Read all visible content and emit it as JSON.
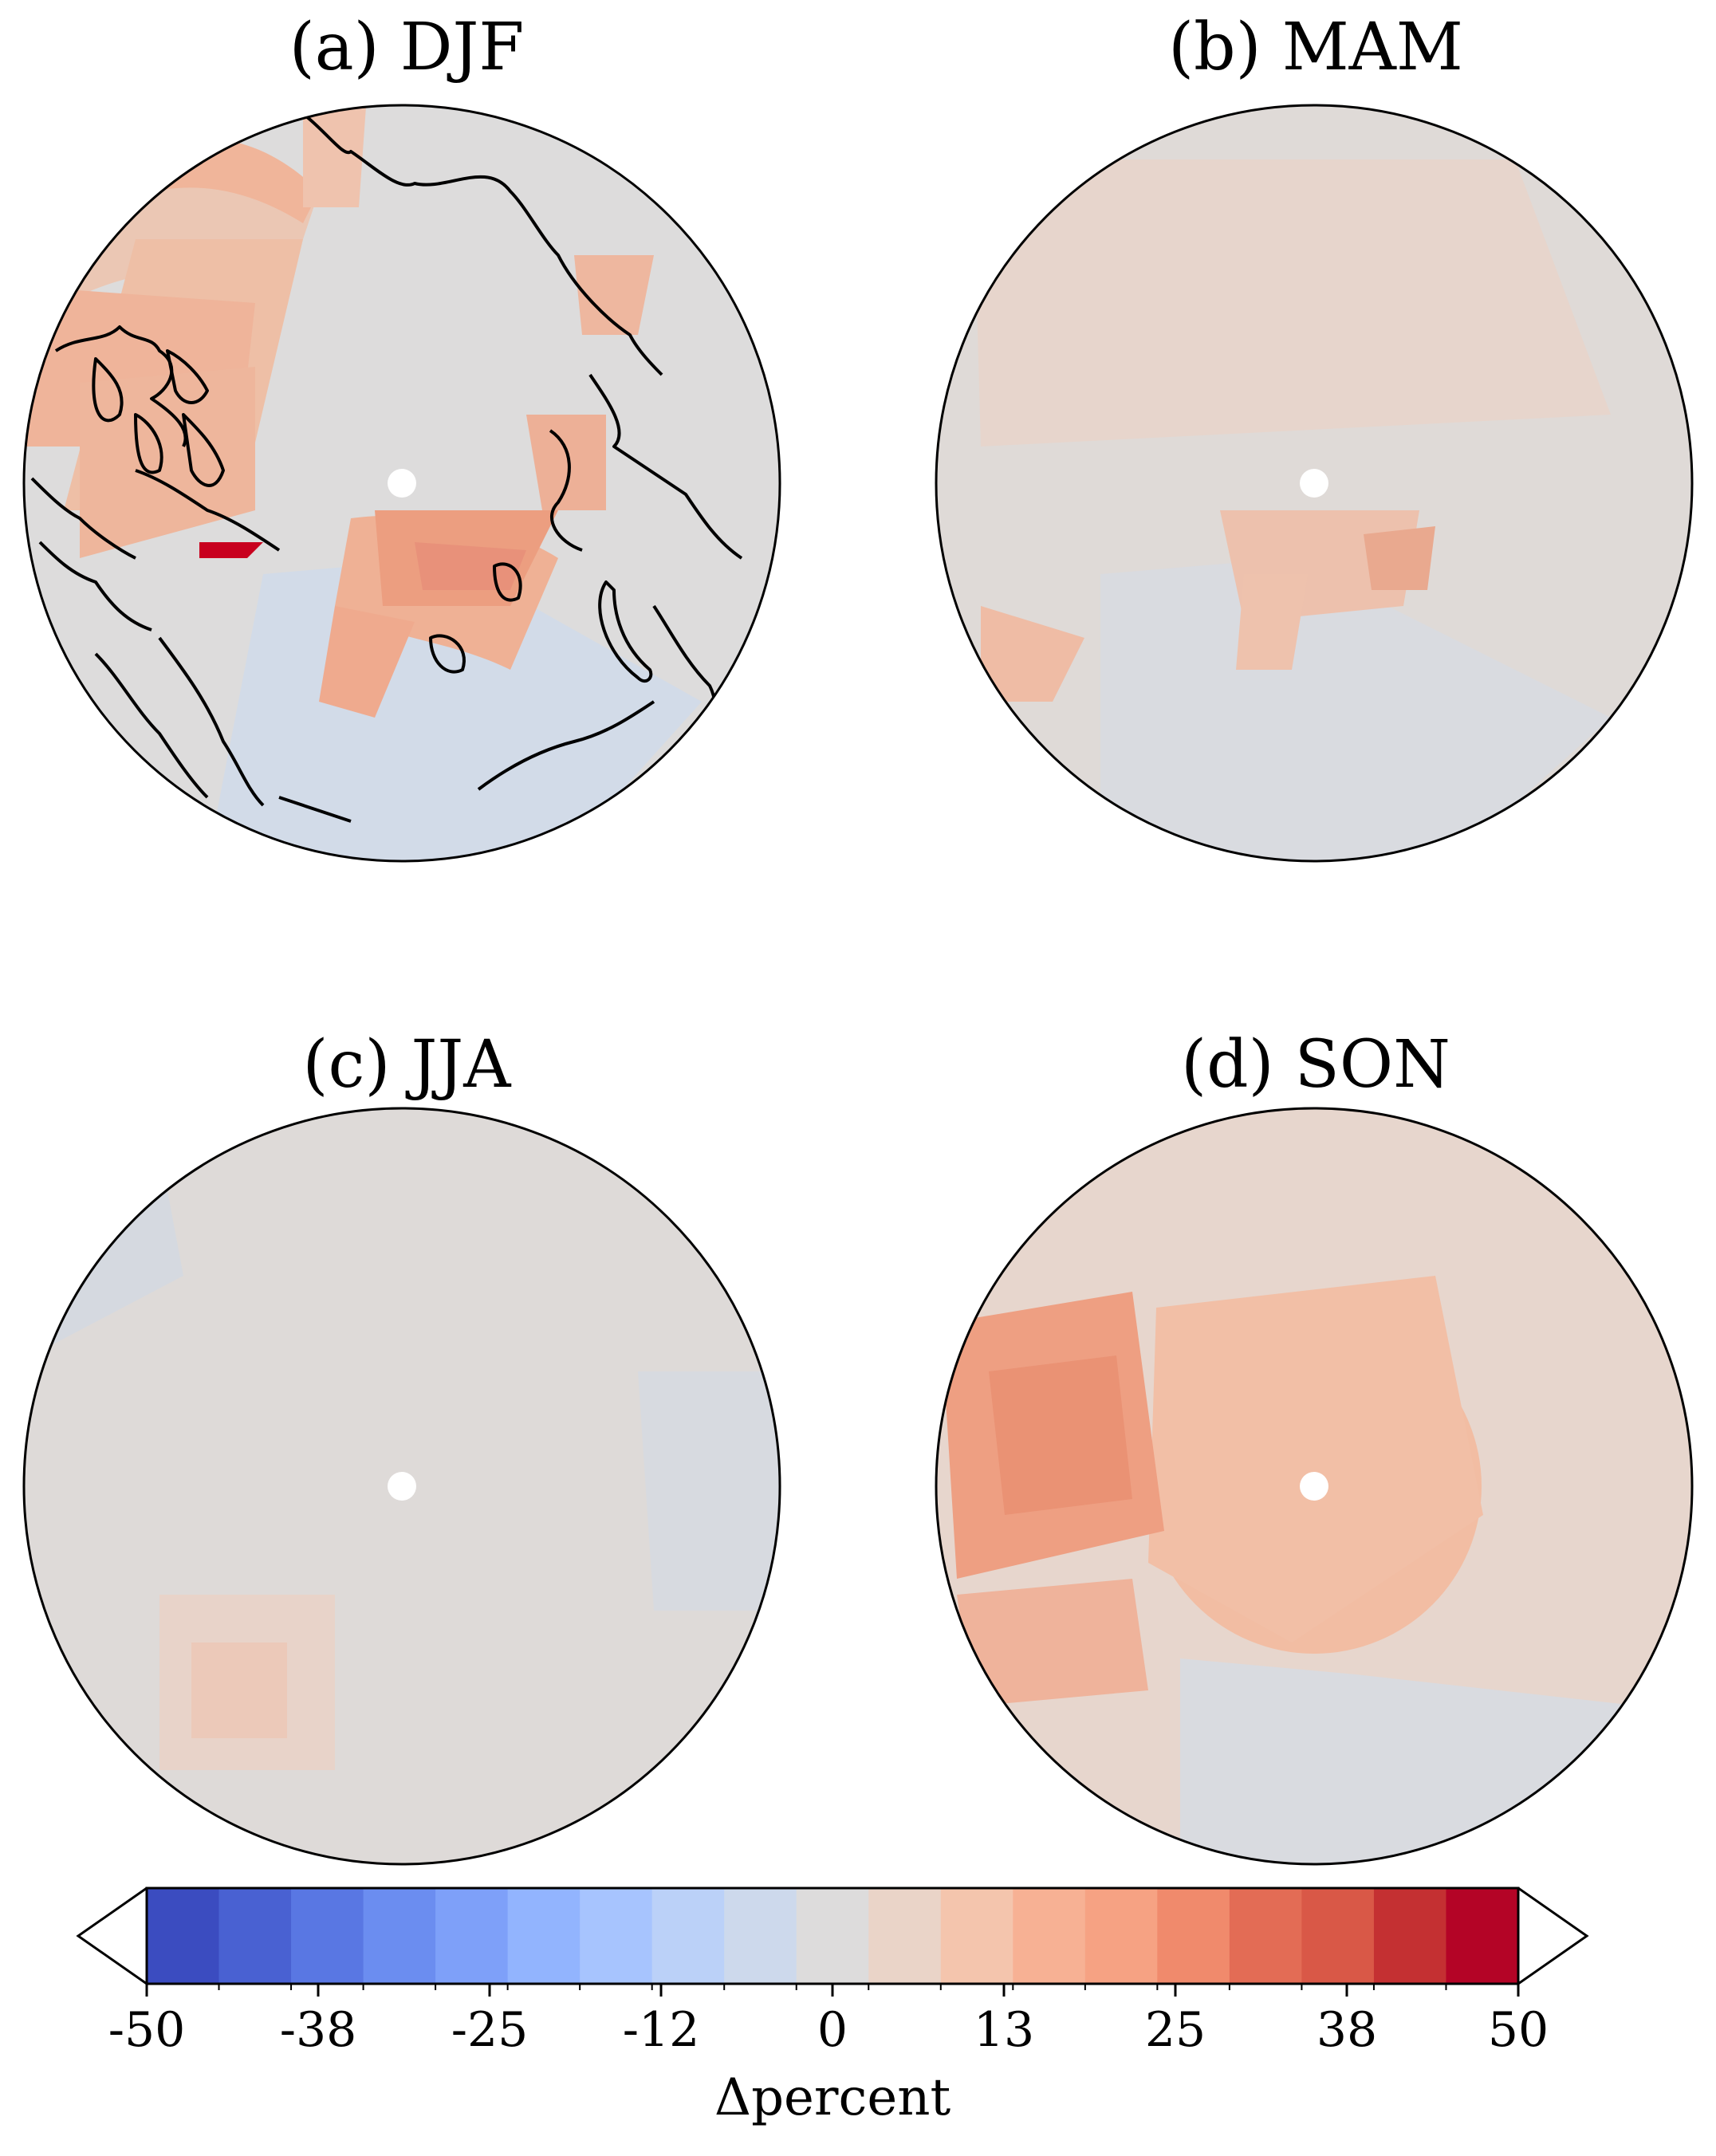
{
  "panels": [
    {
      "title": "(a) DJF",
      "season": "DJF"
    },
    {
      "title": "(b) MAM",
      "season": "MAM"
    },
    {
      "title": "(c) JJA",
      "season": "JJA"
    },
    {
      "title": "(d) SON",
      "season": "SON"
    }
  ],
  "colorbar": {
    "label": "Δpercent",
    "ticks": [
      "-50",
      "-38",
      "-25",
      "-12",
      "0",
      "13",
      "25",
      "38",
      "50"
    ],
    "range": [
      -50,
      50
    ],
    "extend": "both",
    "colors": [
      "#3b4cc0",
      "#4961d2",
      "#5977e3",
      "#6b8df0",
      "#7ea0f9",
      "#92b4fe",
      "#a7c4fe",
      "#bbd1f8",
      "#cdd9ec",
      "#dddcdc",
      "#ead4c8",
      "#f4c5ad",
      "#f7b194",
      "#f6a283",
      "#f08a6c",
      "#e36c55",
      "#d95847",
      "#c43032",
      "#b40426"
    ]
  },
  "chart_data": [
    {
      "type": "heatmap",
      "title": "(a) DJF",
      "projection": "north-polar-stereographic",
      "variable": "Δpercent",
      "range": [
        -50,
        50
      ]
    },
    {
      "type": "heatmap",
      "title": "(b) MAM",
      "projection": "north-polar-stereographic",
      "variable": "Δpercent",
      "range": [
        -50,
        50
      ]
    },
    {
      "type": "heatmap",
      "title": "(c) JJA",
      "projection": "north-polar-stereographic",
      "variable": "Δpercent",
      "range": [
        -50,
        50
      ]
    },
    {
      "type": "heatmap",
      "title": "(d) SON",
      "projection": "north-polar-stereographic",
      "variable": "Δpercent",
      "range": [
        -50,
        50
      ]
    }
  ]
}
